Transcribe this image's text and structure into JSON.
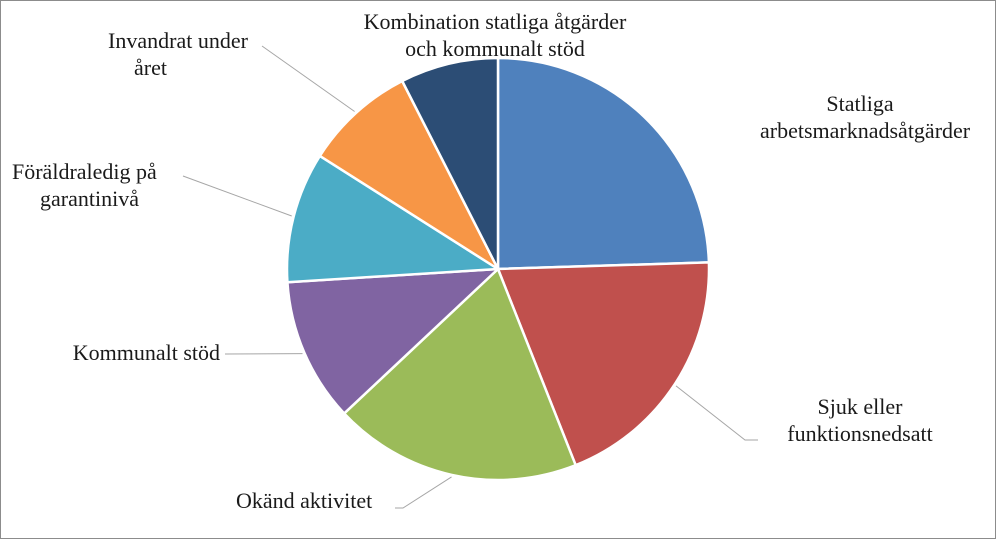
{
  "chart_data": {
    "type": "pie",
    "title": "",
    "start_angle_deg": 0,
    "direction": "clockwise",
    "slices": [
      {
        "label_lines": [
          "Statliga",
          "arbetsmarknadsåtgärder"
        ],
        "value": 24.5,
        "color": "#4f81bd"
      },
      {
        "label_lines": [
          "Sjuk eller",
          "funktionsnedsatt"
        ],
        "value": 19.5,
        "color": "#c0504d"
      },
      {
        "label_lines": [
          "Okänd aktivitet"
        ],
        "value": 19.0,
        "color": "#9bbb59"
      },
      {
        "label_lines": [
          "Kommunalt stöd"
        ],
        "value": 11.0,
        "color": "#8064a2"
      },
      {
        "label_lines": [
          "Föräldraledig på",
          "garantinivå"
        ],
        "value": 10.0,
        "color": "#4bacc6"
      },
      {
        "label_lines": [
          "Invandrat under",
          "året"
        ],
        "value": 8.5,
        "color": "#f79646"
      },
      {
        "label_lines": [
          "Kombination statliga åtgärder",
          "och kommunalt stöd"
        ],
        "value": 7.5,
        "color": "#2c4d75"
      }
    ],
    "legend": "none",
    "data_labels": "category names outside with leader lines"
  }
}
